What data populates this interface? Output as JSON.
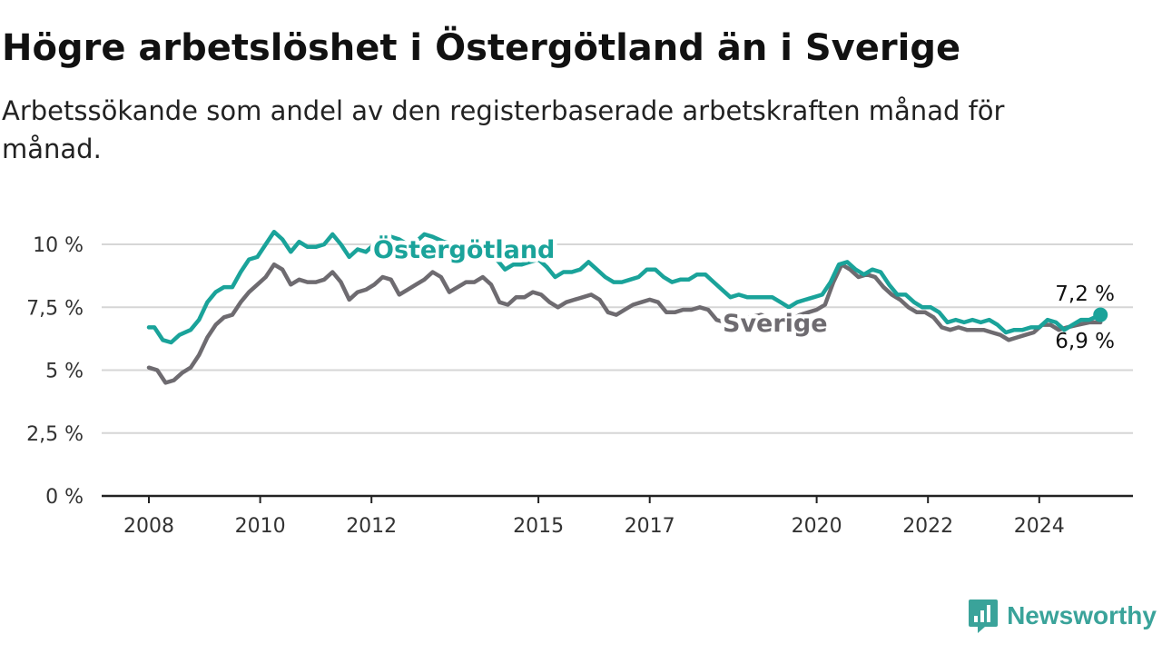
{
  "header": {
    "title": "Högre arbetslöshet i Östergötland än i Sverige",
    "subtitle": "Arbetssökande som andel av den registerbaserade arbetskraften månad för månad."
  },
  "brand": {
    "name": "Newsworthy",
    "icon": "newsworthy-logo-icon"
  },
  "colors": {
    "ostergotland": "#1aa39a",
    "sverige": "#6e6b70",
    "grid": "#d6d6d6",
    "axis": "#222222"
  },
  "chart_data": {
    "type": "line",
    "ylim": [
      0,
      11
    ],
    "y_ticks": [
      {
        "value": 0,
        "label": "0 %"
      },
      {
        "value": 2.5,
        "label": "2,5 %"
      },
      {
        "value": 5,
        "label": "5 %"
      },
      {
        "value": 7.5,
        "label": "7,5 %"
      },
      {
        "value": 10,
        "label": "10 %"
      }
    ],
    "x_ticks": [
      {
        "value": 2008,
        "label": "2008"
      },
      {
        "value": 2010,
        "label": "2010"
      },
      {
        "value": 2012,
        "label": "2012"
      },
      {
        "value": 2015,
        "label": "2015"
      },
      {
        "value": 2017,
        "label": "2017"
      },
      {
        "value": 2020,
        "label": "2020"
      },
      {
        "value": 2022,
        "label": "2022"
      },
      {
        "value": 2024,
        "label": "2024"
      }
    ],
    "xlim": [
      2008,
      2025.75
    ],
    "grid": "horizontal",
    "series": [
      {
        "name": "Östergötland",
        "end_label": "7,2 %",
        "points": [
          [
            2008.0,
            6.7
          ],
          [
            2008.1,
            6.7
          ],
          [
            2008.25,
            6.2
          ],
          [
            2008.4,
            6.1
          ],
          [
            2008.55,
            6.4
          ],
          [
            2008.75,
            6.6
          ],
          [
            2008.9,
            7.0
          ],
          [
            2009.05,
            7.7
          ],
          [
            2009.2,
            8.1
          ],
          [
            2009.35,
            8.3
          ],
          [
            2009.5,
            8.3
          ],
          [
            2009.65,
            8.9
          ],
          [
            2009.8,
            9.4
          ],
          [
            2009.95,
            9.5
          ],
          [
            2010.1,
            10.0
          ],
          [
            2010.25,
            10.5
          ],
          [
            2010.4,
            10.2
          ],
          [
            2010.55,
            9.7
          ],
          [
            2010.7,
            10.1
          ],
          [
            2010.85,
            9.9
          ],
          [
            2011.0,
            9.9
          ],
          [
            2011.15,
            10.0
          ],
          [
            2011.3,
            10.4
          ],
          [
            2011.45,
            10.0
          ],
          [
            2011.6,
            9.5
          ],
          [
            2011.75,
            9.8
          ],
          [
            2011.9,
            9.7
          ],
          [
            2012.05,
            10.0
          ],
          [
            2012.2,
            10.1
          ],
          [
            2012.35,
            10.3
          ],
          [
            2012.5,
            10.2
          ],
          [
            2012.65,
            10.0
          ],
          [
            2012.8,
            10.1
          ],
          [
            2012.95,
            10.4
          ],
          [
            2013.1,
            10.3
          ],
          [
            2013.3,
            10.1
          ],
          [
            2013.5,
            10.0
          ],
          [
            2013.7,
            9.9
          ],
          [
            2013.9,
            9.6
          ],
          [
            2014.1,
            9.5
          ],
          [
            2014.25,
            9.4
          ],
          [
            2014.4,
            9.0
          ],
          [
            2014.55,
            9.2
          ],
          [
            2014.7,
            9.2
          ],
          [
            2014.85,
            9.3
          ],
          [
            2015.0,
            9.4
          ],
          [
            2015.15,
            9.1
          ],
          [
            2015.3,
            8.7
          ],
          [
            2015.45,
            8.9
          ],
          [
            2015.6,
            8.9
          ],
          [
            2015.75,
            9.0
          ],
          [
            2015.9,
            9.3
          ],
          [
            2016.05,
            9.0
          ],
          [
            2016.2,
            8.7
          ],
          [
            2016.35,
            8.5
          ],
          [
            2016.5,
            8.5
          ],
          [
            2016.65,
            8.6
          ],
          [
            2016.8,
            8.7
          ],
          [
            2016.95,
            9.0
          ],
          [
            2017.1,
            9.0
          ],
          [
            2017.25,
            8.7
          ],
          [
            2017.4,
            8.5
          ],
          [
            2017.55,
            8.6
          ],
          [
            2017.7,
            8.6
          ],
          [
            2017.85,
            8.8
          ],
          [
            2018.0,
            8.8
          ],
          [
            2018.15,
            8.5
          ],
          [
            2018.3,
            8.2
          ],
          [
            2018.45,
            7.9
          ],
          [
            2018.6,
            8.0
          ],
          [
            2018.75,
            7.9
          ],
          [
            2018.9,
            7.9
          ],
          [
            2019.05,
            7.9
          ],
          [
            2019.2,
            7.9
          ],
          [
            2019.35,
            7.7
          ],
          [
            2019.5,
            7.5
          ],
          [
            2019.65,
            7.7
          ],
          [
            2019.8,
            7.8
          ],
          [
            2019.95,
            7.9
          ],
          [
            2020.1,
            8.0
          ],
          [
            2020.25,
            8.5
          ],
          [
            2020.4,
            9.2
          ],
          [
            2020.55,
            9.3
          ],
          [
            2020.7,
            9.0
          ],
          [
            2020.85,
            8.8
          ],
          [
            2021.0,
            9.0
          ],
          [
            2021.15,
            8.9
          ],
          [
            2021.3,
            8.4
          ],
          [
            2021.45,
            8.0
          ],
          [
            2021.6,
            8.0
          ],
          [
            2021.75,
            7.7
          ],
          [
            2021.9,
            7.5
          ],
          [
            2022.05,
            7.5
          ],
          [
            2022.2,
            7.3
          ],
          [
            2022.35,
            6.9
          ],
          [
            2022.5,
            7.0
          ],
          [
            2022.65,
            6.9
          ],
          [
            2022.8,
            7.0
          ],
          [
            2022.95,
            6.9
          ],
          [
            2023.1,
            7.0
          ],
          [
            2023.25,
            6.8
          ],
          [
            2023.4,
            6.5
          ],
          [
            2023.55,
            6.6
          ],
          [
            2023.7,
            6.6
          ],
          [
            2023.85,
            6.7
          ],
          [
            2024.0,
            6.7
          ],
          [
            2024.15,
            7.0
          ],
          [
            2024.3,
            6.9
          ],
          [
            2024.45,
            6.6
          ],
          [
            2024.6,
            6.8
          ],
          [
            2024.75,
            7.0
          ],
          [
            2024.9,
            7.0
          ],
          [
            2025.1,
            7.2
          ]
        ]
      },
      {
        "name": "Sverige",
        "end_label": "6,9 %",
        "points": [
          [
            2008.0,
            5.1
          ],
          [
            2008.15,
            5.0
          ],
          [
            2008.3,
            4.5
          ],
          [
            2008.45,
            4.6
          ],
          [
            2008.6,
            4.9
          ],
          [
            2008.75,
            5.1
          ],
          [
            2008.9,
            5.6
          ],
          [
            2009.05,
            6.3
          ],
          [
            2009.2,
            6.8
          ],
          [
            2009.35,
            7.1
          ],
          [
            2009.5,
            7.2
          ],
          [
            2009.65,
            7.7
          ],
          [
            2009.8,
            8.1
          ],
          [
            2009.95,
            8.4
          ],
          [
            2010.1,
            8.7
          ],
          [
            2010.25,
            9.2
          ],
          [
            2010.4,
            9.0
          ],
          [
            2010.55,
            8.4
          ],
          [
            2010.7,
            8.6
          ],
          [
            2010.85,
            8.5
          ],
          [
            2011.0,
            8.5
          ],
          [
            2011.15,
            8.6
          ],
          [
            2011.3,
            8.9
          ],
          [
            2011.45,
            8.5
          ],
          [
            2011.6,
            7.8
          ],
          [
            2011.75,
            8.1
          ],
          [
            2011.9,
            8.2
          ],
          [
            2012.05,
            8.4
          ],
          [
            2012.2,
            8.7
          ],
          [
            2012.35,
            8.6
          ],
          [
            2012.5,
            8.0
          ],
          [
            2012.65,
            8.2
          ],
          [
            2012.8,
            8.4
          ],
          [
            2012.95,
            8.6
          ],
          [
            2013.1,
            8.9
          ],
          [
            2013.25,
            8.7
          ],
          [
            2013.4,
            8.1
          ],
          [
            2013.55,
            8.3
          ],
          [
            2013.7,
            8.5
          ],
          [
            2013.85,
            8.5
          ],
          [
            2014.0,
            8.7
          ],
          [
            2014.15,
            8.4
          ],
          [
            2014.3,
            7.7
          ],
          [
            2014.45,
            7.6
          ],
          [
            2014.6,
            7.9
          ],
          [
            2014.75,
            7.9
          ],
          [
            2014.9,
            8.1
          ],
          [
            2015.05,
            8.0
          ],
          [
            2015.2,
            7.7
          ],
          [
            2015.35,
            7.5
          ],
          [
            2015.5,
            7.7
          ],
          [
            2015.65,
            7.8
          ],
          [
            2015.8,
            7.9
          ],
          [
            2015.95,
            8.0
          ],
          [
            2016.1,
            7.8
          ],
          [
            2016.25,
            7.3
          ],
          [
            2016.4,
            7.2
          ],
          [
            2016.55,
            7.4
          ],
          [
            2016.7,
            7.6
          ],
          [
            2016.85,
            7.7
          ],
          [
            2017.0,
            7.8
          ],
          [
            2017.15,
            7.7
          ],
          [
            2017.3,
            7.3
          ],
          [
            2017.45,
            7.3
          ],
          [
            2017.6,
            7.4
          ],
          [
            2017.75,
            7.4
          ],
          [
            2017.9,
            7.5
          ],
          [
            2018.05,
            7.4
          ],
          [
            2018.2,
            7.0
          ],
          [
            2018.35,
            6.9
          ],
          [
            2018.5,
            7.0
          ],
          [
            2018.65,
            7.0
          ],
          [
            2018.8,
            7.1
          ],
          [
            2019.0,
            7.2
          ],
          [
            2019.2,
            7.0
          ],
          [
            2019.4,
            6.9
          ],
          [
            2019.55,
            7.0
          ],
          [
            2019.7,
            7.2
          ],
          [
            2019.85,
            7.3
          ],
          [
            2020.0,
            7.4
          ],
          [
            2020.15,
            7.6
          ],
          [
            2020.3,
            8.5
          ],
          [
            2020.45,
            9.2
          ],
          [
            2020.6,
            9.0
          ],
          [
            2020.75,
            8.7
          ],
          [
            2020.9,
            8.8
          ],
          [
            2021.05,
            8.7
          ],
          [
            2021.2,
            8.3
          ],
          [
            2021.35,
            8.0
          ],
          [
            2021.5,
            7.8
          ],
          [
            2021.65,
            7.5
          ],
          [
            2021.8,
            7.3
          ],
          [
            2021.95,
            7.3
          ],
          [
            2022.1,
            7.1
          ],
          [
            2022.25,
            6.7
          ],
          [
            2022.4,
            6.6
          ],
          [
            2022.55,
            6.7
          ],
          [
            2022.7,
            6.6
          ],
          [
            2022.85,
            6.6
          ],
          [
            2023.0,
            6.6
          ],
          [
            2023.15,
            6.5
          ],
          [
            2023.3,
            6.4
          ],
          [
            2023.45,
            6.2
          ],
          [
            2023.6,
            6.3
          ],
          [
            2023.75,
            6.4
          ],
          [
            2023.9,
            6.5
          ],
          [
            2024.05,
            6.8
          ],
          [
            2024.2,
            6.8
          ],
          [
            2024.35,
            6.6
          ],
          [
            2024.5,
            6.7
          ],
          [
            2024.7,
            6.8
          ],
          [
            2024.9,
            6.9
          ],
          [
            2025.1,
            6.9
          ]
        ]
      }
    ]
  }
}
